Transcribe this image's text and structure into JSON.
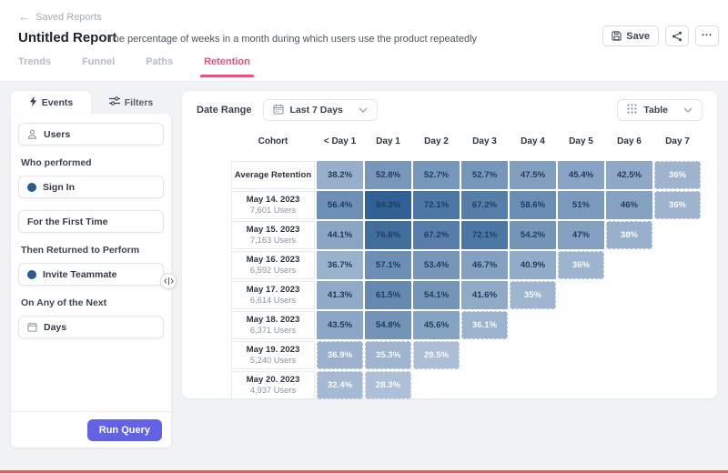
{
  "colors": {
    "accent_pink": "#ef4b7d",
    "run_query_indigo": "#6163e4",
    "cell_dark": "#2d5e92",
    "cell_light": "#b3c4da",
    "navy_dot": "#2b5c90",
    "bottom_bar_red": "#dd5f5f"
  },
  "header": {
    "back_label": "Saved Reports",
    "title": "Untitled Report",
    "description": "The percentage of weeks in a month during which users use the product repeatedly",
    "save_label": "Save",
    "tabs": [
      {
        "label": "Trends",
        "active": false
      },
      {
        "label": "Funnel",
        "active": false
      },
      {
        "label": "Paths",
        "active": false
      },
      {
        "label": "Retention",
        "active": true
      }
    ]
  },
  "sidebar": {
    "tabs": [
      {
        "label": "Events",
        "icon": "lightning-icon",
        "active": true
      },
      {
        "label": "Filters",
        "icon": "sliders-icon",
        "active": false
      }
    ],
    "sections": [
      {
        "type": "field",
        "icon": "user",
        "label": "Users"
      },
      {
        "type": "label",
        "text": "Who performed"
      },
      {
        "type": "field",
        "icon": "dot",
        "label": "Sign In"
      },
      {
        "type": "field",
        "icon": "none",
        "label": "For the First Time"
      },
      {
        "type": "label",
        "text": "Then Returned to Perform"
      },
      {
        "type": "field",
        "icon": "dot",
        "label": "Invite Teammate"
      },
      {
        "type": "label",
        "text": "On Any of the Next"
      },
      {
        "type": "field",
        "icon": "calendar",
        "label": "Days"
      }
    ],
    "run_query_label": "Run Query"
  },
  "toolbar": {
    "date_range_label": "Date Range",
    "date_range_value": "Last 7 Days",
    "view_selector_value": "Table"
  },
  "chart_data": {
    "type": "heatmap",
    "title": "Retention cohort table",
    "columns": [
      "Cohort",
      "< Day 1",
      "Day 1",
      "Day 2",
      "Day 3",
      "Day 4",
      "Day 5",
      "Day 6",
      "Day 7"
    ],
    "value_range": [
      26,
      86
    ],
    "rows": [
      {
        "label": "Average Retention",
        "sublabel": "",
        "cells": [
          {
            "v": 38.2,
            "label": "38.2%",
            "muted": false
          },
          {
            "v": 52.8,
            "label": "52.8%",
            "muted": false
          },
          {
            "v": 52.7,
            "label": "52.7%",
            "muted": false
          },
          {
            "v": 52.7,
            "label": "52.7%",
            "muted": false
          },
          {
            "v": 47.5,
            "label": "47.5%",
            "muted": false
          },
          {
            "v": 45.4,
            "label": "45.4%",
            "muted": false
          },
          {
            "v": 42.5,
            "label": "42.5%",
            "muted": false
          },
          {
            "v": 36.0,
            "label": "36%",
            "muted": true
          }
        ]
      },
      {
        "label": "May 14. 2023",
        "sublabel": "7,601 Users",
        "cells": [
          {
            "v": 56.4,
            "label": "56.4%",
            "muted": false
          },
          {
            "v": 84.3,
            "label": "84.3%",
            "muted": false
          },
          {
            "v": 72.1,
            "label": "72.1%",
            "muted": false
          },
          {
            "v": 67.2,
            "label": "67.2%",
            "muted": false
          },
          {
            "v": 58.6,
            "label": "58.6%",
            "muted": false
          },
          {
            "v": 51.0,
            "label": "51%",
            "muted": false
          },
          {
            "v": 46.0,
            "label": "46%",
            "muted": false
          },
          {
            "v": 36.0,
            "label": "36%",
            "muted": true
          }
        ]
      },
      {
        "label": "May 15. 2023",
        "sublabel": "7,163 Users",
        "cells": [
          {
            "v": 44.1,
            "label": "44.1%",
            "muted": false
          },
          {
            "v": 76.6,
            "label": "76.6%",
            "muted": false
          },
          {
            "v": 67.2,
            "label": "67.2%",
            "muted": false
          },
          {
            "v": 72.1,
            "label": "72.1%",
            "muted": false
          },
          {
            "v": 54.2,
            "label": "54.2%",
            "muted": false
          },
          {
            "v": 47.0,
            "label": "47%",
            "muted": false
          },
          {
            "v": 38.0,
            "label": "38%",
            "muted": true
          }
        ]
      },
      {
        "label": "May 16. 2023",
        "sublabel": "6,592 Users",
        "cells": [
          {
            "v": 36.7,
            "label": "36.7%",
            "muted": false
          },
          {
            "v": 57.1,
            "label": "57.1%",
            "muted": false
          },
          {
            "v": 53.4,
            "label": "53.4%",
            "muted": false
          },
          {
            "v": 46.7,
            "label": "46.7%",
            "muted": false
          },
          {
            "v": 40.9,
            "label": "40.9%",
            "muted": false
          },
          {
            "v": 36.0,
            "label": "36%",
            "muted": true
          }
        ]
      },
      {
        "label": "May 17. 2023",
        "sublabel": "6,614 Users",
        "cells": [
          {
            "v": 41.3,
            "label": "41.3%",
            "muted": false
          },
          {
            "v": 61.5,
            "label": "61.5%",
            "muted": false
          },
          {
            "v": 54.1,
            "label": "54.1%",
            "muted": false
          },
          {
            "v": 41.6,
            "label": "41.6%",
            "muted": false
          },
          {
            "v": 35.0,
            "label": "35%",
            "muted": true
          }
        ]
      },
      {
        "label": "May 18. 2023",
        "sublabel": "6,371 Users",
        "cells": [
          {
            "v": 43.5,
            "label": "43.5%",
            "muted": false
          },
          {
            "v": 54.8,
            "label": "54.8%",
            "muted": false
          },
          {
            "v": 45.6,
            "label": "45.6%",
            "muted": false
          },
          {
            "v": 36.1,
            "label": "36.1%",
            "muted": true
          }
        ]
      },
      {
        "label": "May 19. 2023",
        "sublabel": "5,240 Users",
        "cells": [
          {
            "v": 36.9,
            "label": "36.9%",
            "muted": true
          },
          {
            "v": 35.3,
            "label": "35.3%",
            "muted": true
          },
          {
            "v": 29.5,
            "label": "29.5%",
            "muted": true
          }
        ]
      },
      {
        "label": "May 20. 2023",
        "sublabel": "4,937 Users",
        "cells": [
          {
            "v": 32.4,
            "label": "32.4%",
            "muted": true
          },
          {
            "v": 28.3,
            "label": "28.3%",
            "muted": true
          }
        ]
      }
    ]
  }
}
